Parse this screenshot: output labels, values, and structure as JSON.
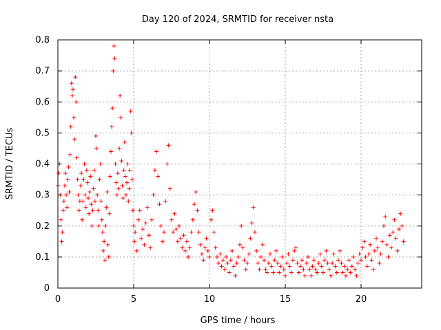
{
  "chart_data": {
    "type": "scatter",
    "title": "Day 120 of 2024, SRMTID for receiver nsta",
    "xlabel": "GPS time / hours",
    "ylabel": "SRMTID / TECUs",
    "xlim": [
      0,
      24
    ],
    "ylim": [
      0,
      0.8
    ],
    "xticks": [
      0,
      5,
      10,
      15,
      20
    ],
    "yticks": [
      0,
      0.1,
      0.2,
      0.3,
      0.4,
      0.5,
      0.6,
      0.7,
      0.8
    ],
    "xtick_labels": [
      "0",
      "5",
      "10",
      "15",
      "20"
    ],
    "ytick_labels": [
      "0",
      "0.1",
      "0.2",
      "0.3",
      "0.4",
      "0.5",
      "0.6",
      "0.7",
      "0.8"
    ],
    "grid": true,
    "marker": "+",
    "color": "#ff0000",
    "series": [
      {
        "name": "SRMTID",
        "points": [
          [
            0.0,
            0.33
          ],
          [
            0.05,
            0.37
          ],
          [
            0.1,
            0.4
          ],
          [
            0.15,
            0.3
          ],
          [
            0.2,
            0.22
          ],
          [
            0.25,
            0.15
          ],
          [
            0.3,
            0.18
          ],
          [
            0.35,
            0.25
          ],
          [
            0.4,
            0.28
          ],
          [
            0.45,
            0.33
          ],
          [
            0.5,
            0.37
          ],
          [
            0.55,
            0.3
          ],
          [
            0.6,
            0.26
          ],
          [
            0.65,
            0.35
          ],
          [
            0.7,
            0.39
          ],
          [
            0.75,
            0.31
          ],
          [
            0.8,
            0.43
          ],
          [
            0.85,
            0.52
          ],
          [
            0.9,
            0.66
          ],
          [
            0.95,
            0.62
          ],
          [
            1.0,
            0.64
          ],
          [
            1.05,
            0.55
          ],
          [
            1.1,
            0.48
          ],
          [
            1.15,
            0.68
          ],
          [
            1.2,
            0.6
          ],
          [
            1.25,
            0.42
          ],
          [
            1.3,
            0.35
          ],
          [
            1.35,
            0.3
          ],
          [
            1.4,
            0.25
          ],
          [
            1.45,
            0.28
          ],
          [
            1.5,
            0.33
          ],
          [
            1.55,
            0.37
          ],
          [
            1.6,
            0.22
          ],
          [
            1.65,
            0.28
          ],
          [
            1.7,
            0.35
          ],
          [
            1.75,
            0.4
          ],
          [
            1.8,
            0.3
          ],
          [
            1.85,
            0.26
          ],
          [
            1.9,
            0.38
          ],
          [
            1.95,
            0.34
          ],
          [
            2.0,
            0.29
          ],
          [
            2.05,
            0.24
          ],
          [
            2.1,
            0.31
          ],
          [
            2.15,
            0.36
          ],
          [
            2.2,
            0.27
          ],
          [
            2.25,
            0.2
          ],
          [
            2.3,
            0.25
          ],
          [
            2.35,
            0.32
          ],
          [
            2.4,
            0.38
          ],
          [
            2.45,
            0.28
          ],
          [
            2.5,
            0.49
          ],
          [
            2.55,
            0.45
          ],
          [
            2.6,
            0.3
          ],
          [
            2.65,
            0.25
          ],
          [
            2.7,
            0.2
          ],
          [
            2.75,
            0.35
          ],
          [
            2.8,
            0.4
          ],
          [
            2.85,
            0.28
          ],
          [
            2.9,
            0.22
          ],
          [
            2.95,
            0.18
          ],
          [
            3.0,
            0.12
          ],
          [
            3.05,
            0.15
          ],
          [
            3.1,
            0.09
          ],
          [
            3.15,
            0.2
          ],
          [
            3.2,
            0.26
          ],
          [
            3.25,
            0.31
          ],
          [
            3.3,
            0.14
          ],
          [
            3.35,
            0.1
          ],
          [
            3.4,
            0.24
          ],
          [
            3.45,
            0.36
          ],
          [
            3.5,
            0.44
          ],
          [
            3.55,
            0.52
          ],
          [
            3.6,
            0.58
          ],
          [
            3.65,
            0.7
          ],
          [
            3.7,
            0.78
          ],
          [
            3.75,
            0.74
          ],
          [
            3.8,
            0.4
          ],
          [
            3.85,
            0.34
          ],
          [
            3.9,
            0.3
          ],
          [
            3.95,
            0.37
          ],
          [
            4.0,
            0.32
          ],
          [
            4.05,
            0.45
          ],
          [
            4.1,
            0.62
          ],
          [
            4.15,
            0.55
          ],
          [
            4.2,
            0.41
          ],
          [
            4.25,
            0.33
          ],
          [
            4.3,
            0.29
          ],
          [
            4.35,
            0.38
          ],
          [
            4.4,
            0.47
          ],
          [
            4.45,
            0.36
          ],
          [
            4.5,
            0.3
          ],
          [
            4.55,
            0.34
          ],
          [
            4.6,
            0.4
          ],
          [
            4.65,
            0.28
          ],
          [
            4.7,
            0.32
          ],
          [
            4.75,
            0.38
          ],
          [
            4.8,
            0.57
          ],
          [
            4.85,
            0.5
          ],
          [
            4.9,
            0.35
          ],
          [
            4.95,
            0.25
          ],
          [
            5.0,
            0.2
          ],
          [
            5.05,
            0.15
          ],
          [
            5.1,
            0.18
          ],
          [
            5.2,
            0.12
          ],
          [
            5.3,
            0.22
          ],
          [
            5.4,
            0.25
          ],
          [
            5.5,
            0.16
          ],
          [
            5.6,
            0.19
          ],
          [
            5.7,
            0.14
          ],
          [
            5.8,
            0.21
          ],
          [
            5.9,
            0.26
          ],
          [
            6.0,
            0.17
          ],
          [
            6.1,
            0.13
          ],
          [
            6.2,
            0.22
          ],
          [
            6.3,
            0.3
          ],
          [
            6.4,
            0.38
          ],
          [
            6.5,
            0.44
          ],
          [
            6.6,
            0.36
          ],
          [
            6.7,
            0.27
          ],
          [
            6.8,
            0.2
          ],
          [
            6.9,
            0.15
          ],
          [
            7.0,
            0.18
          ],
          [
            7.1,
            0.28
          ],
          [
            7.2,
            0.4
          ],
          [
            7.3,
            0.46
          ],
          [
            7.4,
            0.32
          ],
          [
            7.5,
            0.22
          ],
          [
            7.6,
            0.18
          ],
          [
            7.7,
            0.24
          ],
          [
            7.8,
            0.19
          ],
          [
            7.9,
            0.15
          ],
          [
            8.0,
            0.2
          ],
          [
            8.1,
            0.16
          ],
          [
            8.2,
            0.13
          ],
          [
            8.3,
            0.17
          ],
          [
            8.4,
            0.12
          ],
          [
            8.5,
            0.15
          ],
          [
            8.6,
            0.1
          ],
          [
            8.7,
            0.13
          ],
          [
            8.8,
            0.18
          ],
          [
            8.9,
            0.22
          ],
          [
            9.0,
            0.27
          ],
          [
            9.1,
            0.31
          ],
          [
            9.2,
            0.25
          ],
          [
            9.3,
            0.18
          ],
          [
            9.4,
            0.14
          ],
          [
            9.5,
            0.11
          ],
          [
            9.6,
            0.09
          ],
          [
            9.7,
            0.13
          ],
          [
            9.8,
            0.16
          ],
          [
            9.9,
            0.12
          ],
          [
            10.0,
            0.1
          ],
          [
            10.1,
            0.22
          ],
          [
            10.2,
            0.25
          ],
          [
            10.3,
            0.18
          ],
          [
            10.4,
            0.13
          ],
          [
            10.5,
            0.1
          ],
          [
            10.6,
            0.08
          ],
          [
            10.7,
            0.11
          ],
          [
            10.8,
            0.07
          ],
          [
            10.9,
            0.09
          ],
          [
            11.0,
            0.06
          ],
          [
            11.1,
            0.1
          ],
          [
            11.2,
            0.08
          ],
          [
            11.3,
            0.05
          ],
          [
            11.4,
            0.09
          ],
          [
            11.5,
            0.12
          ],
          [
            11.6,
            0.07
          ],
          [
            11.7,
            0.04
          ],
          [
            11.8,
            0.08
          ],
          [
            11.9,
            0.1
          ],
          [
            12.0,
            0.14
          ],
          [
            12.1,
            0.2
          ],
          [
            12.2,
            0.13
          ],
          [
            12.3,
            0.09
          ],
          [
            12.4,
            0.06
          ],
          [
            12.5,
            0.08
          ],
          [
            12.6,
            0.11
          ],
          [
            12.7,
            0.16
          ],
          [
            12.8,
            0.21
          ],
          [
            12.9,
            0.26
          ],
          [
            13.0,
            0.18
          ],
          [
            13.1,
            0.12
          ],
          [
            13.2,
            0.08
          ],
          [
            13.3,
            0.06
          ],
          [
            13.4,
            0.1
          ],
          [
            13.5,
            0.14
          ],
          [
            13.6,
            0.09
          ],
          [
            13.7,
            0.06
          ],
          [
            13.8,
            0.05
          ],
          [
            13.9,
            0.08
          ],
          [
            14.0,
            0.11
          ],
          [
            14.1,
            0.07
          ],
          [
            14.2,
            0.05
          ],
          [
            14.3,
            0.09
          ],
          [
            14.4,
            0.12
          ],
          [
            14.5,
            0.08
          ],
          [
            14.6,
            0.05
          ],
          [
            14.7,
            0.07
          ],
          [
            14.8,
            0.1
          ],
          [
            14.9,
            0.06
          ],
          [
            15.0,
            0.04
          ],
          [
            15.1,
            0.08
          ],
          [
            15.2,
            0.11
          ],
          [
            15.3,
            0.07
          ],
          [
            15.4,
            0.05
          ],
          [
            15.5,
            0.09
          ],
          [
            15.6,
            0.12
          ],
          [
            15.7,
            0.13
          ],
          [
            15.8,
            0.08
          ],
          [
            15.9,
            0.05
          ],
          [
            16.0,
            0.07
          ],
          [
            16.1,
            0.09
          ],
          [
            16.2,
            0.06
          ],
          [
            16.3,
            0.04
          ],
          [
            16.4,
            0.08
          ],
          [
            16.5,
            0.1
          ],
          [
            16.6,
            0.06
          ],
          [
            16.7,
            0.04
          ],
          [
            16.8,
            0.07
          ],
          [
            16.9,
            0.09
          ],
          [
            17.0,
            0.06
          ],
          [
            17.1,
            0.05
          ],
          [
            17.2,
            0.08
          ],
          [
            17.3,
            0.11
          ],
          [
            17.4,
            0.07
          ],
          [
            17.5,
            0.05
          ],
          [
            17.6,
            0.09
          ],
          [
            17.7,
            0.12
          ],
          [
            17.8,
            0.08
          ],
          [
            17.9,
            0.06
          ],
          [
            18.0,
            0.04
          ],
          [
            18.1,
            0.08
          ],
          [
            18.2,
            0.11
          ],
          [
            18.3,
            0.07
          ],
          [
            18.4,
            0.05
          ],
          [
            18.5,
            0.09
          ],
          [
            18.6,
            0.12
          ],
          [
            18.7,
            0.08
          ],
          [
            18.8,
            0.05
          ],
          [
            18.9,
            0.07
          ],
          [
            19.0,
            0.04
          ],
          [
            19.1,
            0.06
          ],
          [
            19.2,
            0.09
          ],
          [
            19.3,
            0.05
          ],
          [
            19.4,
            0.07
          ],
          [
            19.5,
            0.1
          ],
          [
            19.6,
            0.06
          ],
          [
            19.7,
            0.04
          ],
          [
            19.8,
            0.08
          ],
          [
            19.9,
            0.11
          ],
          [
            20.0,
            0.09
          ],
          [
            20.1,
            0.13
          ],
          [
            20.2,
            0.15
          ],
          [
            20.3,
            0.1
          ],
          [
            20.4,
            0.07
          ],
          [
            20.5,
            0.11
          ],
          [
            20.6,
            0.14
          ],
          [
            20.7,
            0.09
          ],
          [
            20.8,
            0.06
          ],
          [
            20.9,
            0.12
          ],
          [
            21.0,
            0.16
          ],
          [
            21.1,
            0.13
          ],
          [
            21.2,
            0.08
          ],
          [
            21.3,
            0.11
          ],
          [
            21.4,
            0.15
          ],
          [
            21.5,
            0.2
          ],
          [
            21.6,
            0.23
          ],
          [
            21.7,
            0.14
          ],
          [
            21.8,
            0.1
          ],
          [
            21.9,
            0.17
          ],
          [
            22.0,
            0.13
          ],
          [
            22.1,
            0.18
          ],
          [
            22.2,
            0.22
          ],
          [
            22.3,
            0.16
          ],
          [
            22.4,
            0.12
          ],
          [
            22.5,
            0.19
          ],
          [
            22.6,
            0.24
          ],
          [
            22.7,
            0.2
          ],
          [
            22.8,
            0.15
          ]
        ]
      }
    ]
  }
}
